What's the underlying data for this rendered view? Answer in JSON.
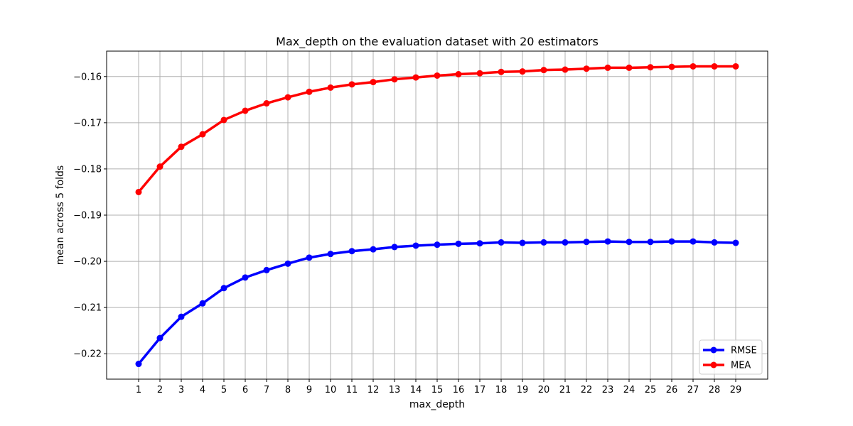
{
  "chart_data": {
    "type": "line",
    "title": "Max_depth on the evaluation dataset with 20 estimators",
    "xlabel": "max_depth",
    "ylabel": "mean across 5 folds",
    "x": [
      1,
      2,
      3,
      4,
      5,
      6,
      7,
      8,
      9,
      10,
      11,
      12,
      13,
      14,
      15,
      16,
      17,
      18,
      19,
      20,
      21,
      22,
      23,
      24,
      25,
      26,
      27,
      28,
      29
    ],
    "xlim": [
      -0.5,
      30.5
    ],
    "ylim": [
      -0.2255,
      -0.1545
    ],
    "yticks": [
      -0.22,
      -0.21,
      -0.2,
      -0.19,
      -0.18,
      -0.17,
      -0.16
    ],
    "ytick_labels": [
      "−0.22",
      "−0.21",
      "−0.20",
      "−0.19",
      "−0.18",
      "−0.17",
      "−0.16"
    ],
    "grid": true,
    "legend_position": "lower-right",
    "series": [
      {
        "name": "RMSE",
        "color": "#0000ff",
        "values": [
          -0.2222,
          -0.2166,
          -0.212,
          -0.2091,
          -0.2058,
          -0.2035,
          -0.2019,
          -0.2005,
          -0.1992,
          -0.1984,
          -0.1978,
          -0.1974,
          -0.1969,
          -0.1966,
          -0.1964,
          -0.1962,
          -0.1961,
          -0.1959,
          -0.196,
          -0.1959,
          -0.1959,
          -0.1958,
          -0.1957,
          -0.1958,
          -0.1958,
          -0.1957,
          -0.1957,
          -0.1959,
          -0.196
        ]
      },
      {
        "name": "MEA",
        "color": "#ff0000",
        "values": [
          -0.185,
          -0.1795,
          -0.1752,
          -0.1725,
          -0.1694,
          -0.1674,
          -0.1658,
          -0.1645,
          -0.1633,
          -0.1624,
          -0.1617,
          -0.1612,
          -0.1606,
          -0.1602,
          -0.1598,
          -0.1595,
          -0.1593,
          -0.159,
          -0.1589,
          -0.1586,
          -0.1585,
          -0.1583,
          -0.1581,
          -0.1581,
          -0.158,
          -0.1579,
          -0.1578,
          -0.1578,
          -0.1578
        ]
      }
    ]
  }
}
